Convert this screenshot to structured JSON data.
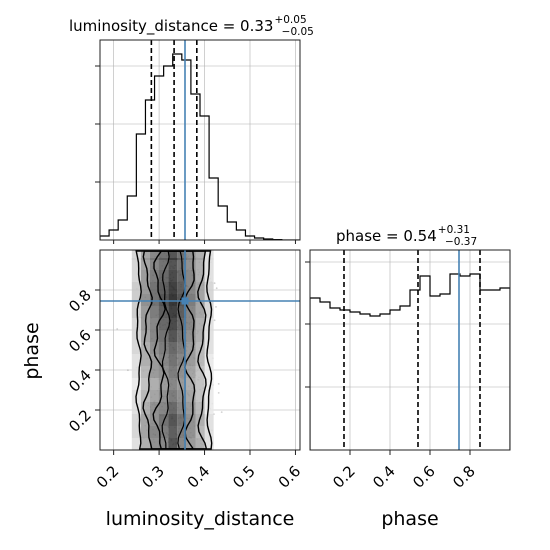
{
  "chart_data": [
    {
      "type": "histogram",
      "panel": "luminosity_distance-marginal",
      "title": {
        "main": "luminosity_distance = 0.33",
        "plus": "+0.05",
        "minus": "−0.05"
      },
      "xlim": [
        0.17,
        0.61
      ],
      "ylim": [
        0,
        1.0
      ],
      "bin_edges": [
        0.17,
        0.19,
        0.21,
        0.23,
        0.25,
        0.27,
        0.29,
        0.31,
        0.33,
        0.35,
        0.37,
        0.39,
        0.41,
        0.43,
        0.45,
        0.47,
        0.49,
        0.51,
        0.53,
        0.55,
        0.57,
        0.59,
        0.61
      ],
      "counts": [
        0.02,
        0.05,
        0.1,
        0.22,
        0.53,
        0.7,
        0.82,
        0.87,
        0.93,
        0.9,
        0.73,
        0.62,
        0.31,
        0.17,
        0.09,
        0.05,
        0.02,
        0.01,
        0.005,
        0.002,
        0,
        0
      ],
      "quantile_lines": [
        0.283,
        0.333,
        0.383
      ],
      "truth": 0.357,
      "grid": true
    },
    {
      "type": "heatmap",
      "panel": "luminosity_distance-vs-phase",
      "xlim": [
        0.17,
        0.61
      ],
      "ylim": [
        0.0,
        1.0
      ],
      "xticks": [
        "0.2",
        "0.3",
        "0.4",
        "0.5",
        "0.6"
      ],
      "yticks": [
        "0.2",
        "0.4",
        "0.6",
        "0.8"
      ],
      "x_columns": [
        0.25,
        0.27,
        0.29,
        0.31,
        0.33,
        0.35,
        0.37,
        0.39,
        0.41
      ],
      "y_rows": [
        0.03,
        0.09,
        0.15,
        0.21,
        0.27,
        0.33,
        0.39,
        0.45,
        0.51,
        0.57,
        0.63,
        0.69,
        0.75,
        0.81,
        0.87,
        0.93,
        0.98
      ],
      "density": [
        [
          0.15,
          0.4,
          0.55,
          0.6,
          0.85,
          0.6,
          0.5,
          0.4,
          0.15
        ],
        [
          0.2,
          0.45,
          0.6,
          0.65,
          0.8,
          0.65,
          0.55,
          0.35,
          0.15
        ],
        [
          0.2,
          0.45,
          0.55,
          0.7,
          0.85,
          0.7,
          0.55,
          0.4,
          0.15
        ],
        [
          0.15,
          0.4,
          0.55,
          0.6,
          0.75,
          0.6,
          0.5,
          0.35,
          0.1
        ],
        [
          0.15,
          0.35,
          0.45,
          0.55,
          0.65,
          0.55,
          0.45,
          0.3,
          0.1
        ],
        [
          0.1,
          0.3,
          0.4,
          0.5,
          0.6,
          0.5,
          0.4,
          0.3,
          0.1
        ],
        [
          0.15,
          0.35,
          0.5,
          0.55,
          0.65,
          0.55,
          0.45,
          0.3,
          0.1
        ],
        [
          0.15,
          0.4,
          0.5,
          0.6,
          0.7,
          0.6,
          0.5,
          0.35,
          0.1
        ],
        [
          0.2,
          0.4,
          0.55,
          0.65,
          0.75,
          0.65,
          0.5,
          0.35,
          0.15
        ],
        [
          0.2,
          0.45,
          0.6,
          0.7,
          0.85,
          0.7,
          0.55,
          0.4,
          0.15
        ],
        [
          0.2,
          0.5,
          0.6,
          0.75,
          0.9,
          0.75,
          0.6,
          0.4,
          0.15
        ],
        [
          0.25,
          0.5,
          0.65,
          0.8,
          0.95,
          0.8,
          0.6,
          0.45,
          0.2
        ],
        [
          0.25,
          0.55,
          0.7,
          0.85,
          1.0,
          0.85,
          0.65,
          0.45,
          0.2
        ],
        [
          0.25,
          0.5,
          0.7,
          0.8,
          0.95,
          0.8,
          0.6,
          0.45,
          0.2
        ],
        [
          0.2,
          0.5,
          0.65,
          0.75,
          0.9,
          0.75,
          0.6,
          0.4,
          0.15
        ],
        [
          0.2,
          0.45,
          0.6,
          0.7,
          0.85,
          0.7,
          0.55,
          0.4,
          0.15
        ],
        [
          0.2,
          0.45,
          0.6,
          0.7,
          0.85,
          0.7,
          0.55,
          0.4,
          0.15
        ]
      ],
      "truth": {
        "x": 0.357,
        "y": 0.745
      },
      "xlabel": "luminosity_distance",
      "ylabel": "phase"
    },
    {
      "type": "histogram",
      "panel": "phase-marginal",
      "title": {
        "main": "phase = 0.54",
        "plus": "+0.31",
        "minus": "−0.37"
      },
      "xlim": [
        0.0,
        1.0
      ],
      "ylim": [
        0,
        1.0
      ],
      "xticks": [
        "0.2",
        "0.4",
        "0.6",
        "0.8"
      ],
      "bin_edges": [
        0.0,
        0.05,
        0.1,
        0.15,
        0.2,
        0.25,
        0.3,
        0.35,
        0.4,
        0.45,
        0.5,
        0.55,
        0.6,
        0.65,
        0.7,
        0.75,
        0.8,
        0.85,
        0.9,
        0.95,
        1.0
      ],
      "counts": [
        0.76,
        0.74,
        0.71,
        0.7,
        0.69,
        0.68,
        0.67,
        0.68,
        0.7,
        0.72,
        0.8,
        0.87,
        0.77,
        0.78,
        0.88,
        0.87,
        0.88,
        0.8,
        0.8,
        0.81
      ],
      "quantile_lines": [
        0.17,
        0.54,
        0.85
      ],
      "truth": 0.745,
      "grid": true,
      "xlabel": "phase"
    }
  ],
  "colors": {
    "truth": "#4682b4",
    "hist": "#000000",
    "grid": "#b0b0b0",
    "point": "#9a9a9a"
  }
}
